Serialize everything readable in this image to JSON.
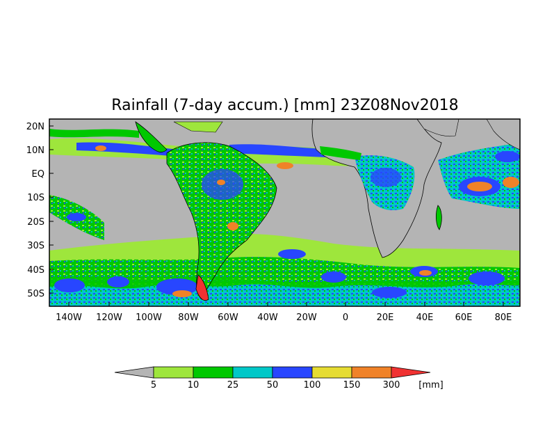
{
  "title": "Rainfall (7-day accum.) [mm] 23Z08Nov2018",
  "lat_labels": [
    "20N",
    "10N",
    "EQ",
    "10S",
    "20S",
    "30S",
    "40S",
    "50S"
  ],
  "lon_labels": [
    "140W",
    "120W",
    "100W",
    "80W",
    "60W",
    "40W",
    "20W",
    "0",
    "20E",
    "40E",
    "60E",
    "80E"
  ],
  "colorbar": {
    "thresholds": [
      "5",
      "10",
      "25",
      "50",
      "100",
      "150",
      "300"
    ],
    "unit": "[mm]",
    "colors": [
      "#b4b4b4",
      "#9ee63c",
      "#00c800",
      "#00c8c8",
      "#2846ff",
      "#e6dc32",
      "#f08228",
      "#f03232"
    ]
  },
  "map": {
    "ocean_color": "#b4b4b4",
    "border_color": "#000000"
  }
}
